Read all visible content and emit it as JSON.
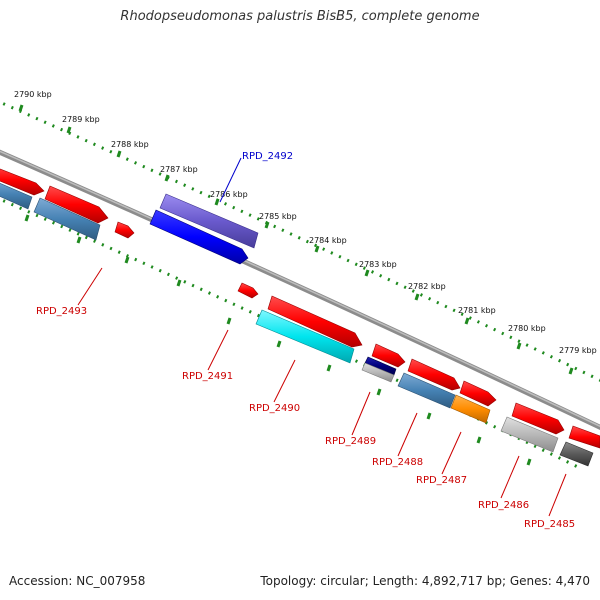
{
  "title": "Rhodopseudomonas palustris BisB5, complete genome",
  "footer": {
    "accession_label": "Accession:",
    "accession": "NC_007958",
    "topology_label": "Topology:",
    "topology": "circular",
    "length_label": "Length:",
    "length": "4,892,717 bp",
    "genes_label": "Genes:",
    "genes": "4,470"
  },
  "scale_ticks": [
    "2790 kbp",
    "2789 kbp",
    "2788 kbp",
    "2787 kbp",
    "2786 kbp",
    "2785 kbp",
    "2784 kbp",
    "2783 kbp",
    "2782 kbp",
    "2781 kbp",
    "2780 kbp",
    "2779 kbp"
  ],
  "gene_labels": [
    "RPD_2492",
    "RPD_2493",
    "RPD_2491",
    "RPD_2490",
    "RPD_2489",
    "RPD_2488",
    "RPD_2487",
    "RPD_2486",
    "RPD_2485"
  ],
  "colors": {
    "backbone": "#8c8c8c",
    "scale_dots": "#1f8a1f",
    "label_red": "#cc0000",
    "label_blue": "#0000cc",
    "cds_red": "#ff0000",
    "cds_blue": "#0000ff",
    "cds_purple": "#6a5acd",
    "cds_cyan": "#00e5ee",
    "cds_steel": "#4682b4",
    "cds_navy": "#00007a",
    "cds_orange": "#ff8c00",
    "cds_gray": "#b0b0b0",
    "cds_dark": "#555555"
  }
}
